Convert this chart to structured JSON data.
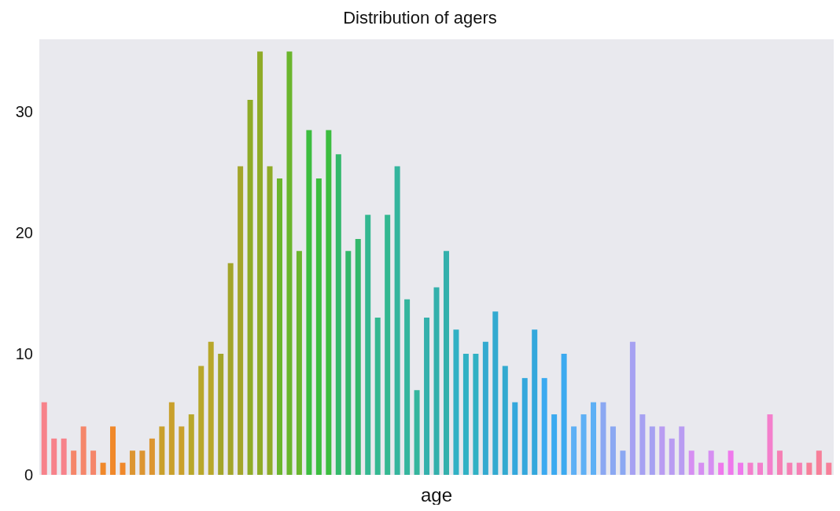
{
  "chart_data": {
    "type": "bar",
    "title": "Distribution of agers",
    "xlabel": "age",
    "categories": [
      null,
      null,
      null,
      null,
      null,
      null,
      null,
      null,
      null,
      null,
      null,
      null,
      null,
      null,
      null,
      null,
      null,
      null,
      null,
      null,
      null,
      null,
      null,
      null,
      null,
      null,
      null,
      null,
      null,
      null,
      null,
      null,
      null,
      null,
      null,
      null,
      null,
      null,
      null,
      null,
      null,
      null,
      null,
      null,
      null,
      null,
      null,
      null,
      null,
      null,
      null,
      null,
      null,
      null,
      null,
      null,
      null,
      null,
      null,
      null,
      null,
      null,
      null,
      null,
      null,
      null,
      null,
      null,
      null,
      null,
      null,
      null,
      null,
      null,
      null,
      null,
      null,
      null,
      null,
      null,
      null
    ],
    "values": [
      6,
      3,
      3,
      2,
      4,
      2,
      1,
      4,
      1,
      2,
      2,
      3,
      4,
      6,
      4,
      5,
      9,
      11,
      10,
      17.5,
      25.5,
      31,
      35,
      25.5,
      24.5,
      35,
      18.5,
      28.5,
      24.5,
      28.5,
      26.5,
      18.5,
      19.5,
      21.5,
      13,
      21.5,
      25.5,
      14.5,
      7,
      13,
      15.5,
      18.5,
      12,
      10,
      10,
      11,
      13.5,
      9,
      6,
      8,
      12,
      8,
      5,
      10,
      4,
      5,
      6,
      6,
      4,
      2,
      11,
      5,
      4,
      4,
      3,
      4,
      2,
      1,
      2,
      1,
      2,
      1,
      1,
      1,
      5,
      2,
      1,
      1,
      1,
      2,
      1
    ],
    "colors": [
      "#f7828a",
      "#f7828a",
      "#f7828a",
      "#f5866a",
      "#f5866a",
      "#f5866a",
      "#f0882a",
      "#f0882a",
      "#f0882a",
      "#dc9531",
      "#dc9531",
      "#dc9531",
      "#c9a02c",
      "#c9a02c",
      "#c9a02c",
      "#b8a72a",
      "#b8a72a",
      "#b8a72a",
      "#a3a52a",
      "#a3a52a",
      "#a3a52a",
      "#8fab27",
      "#8fab27",
      "#8fab27",
      "#6bb52d",
      "#6bb52d",
      "#6bb52d",
      "#3cbd3f",
      "#3cbd3f",
      "#3cbd3f",
      "#33b86b",
      "#33b86b",
      "#33b86b",
      "#33b891",
      "#33b891",
      "#33b891",
      "#34b59d",
      "#34b59d",
      "#34b59d",
      "#33b0ac",
      "#33b0ac",
      "#33b0ac",
      "#31b1c4",
      "#31b1c4",
      "#31b1c4",
      "#33aad0",
      "#33aad0",
      "#33aad0",
      "#34a8dc",
      "#34a8dc",
      "#34a8dc",
      "#3baaf0",
      "#3baaf0",
      "#3baaf0",
      "#5eb0f5",
      "#5eb0f5",
      "#5eb0f5",
      "#8ba8f2",
      "#8ba8f2",
      "#8ba8f2",
      "#a6a1f2",
      "#a6a1f2",
      "#a6a1f2",
      "#b99cf2",
      "#b99cf2",
      "#b99cf2",
      "#d68ef2",
      "#d68ef2",
      "#d68ef2",
      "#ef79ec",
      "#ef79ec",
      "#ef79ec",
      "#f47fcc",
      "#f47fcc",
      "#f47fcc",
      "#f67fb4",
      "#f67fb4",
      "#f67fb4",
      "#f77f99",
      "#f77f99",
      "#f77f99"
    ],
    "ylim": [
      0,
      36
    ],
    "yticks": [
      0,
      10,
      20,
      30
    ]
  }
}
